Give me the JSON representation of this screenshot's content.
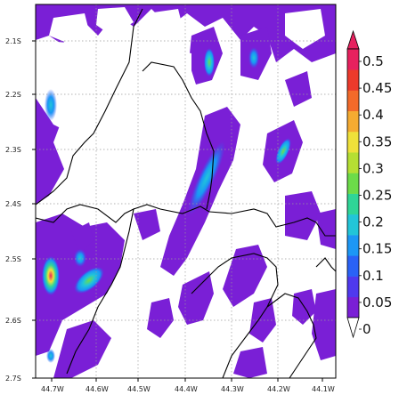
{
  "map": {
    "lat_ticks": [
      "2.1S",
      "2.2S",
      "2.3S",
      "2.4S",
      "2.5S",
      "2.6S",
      "2.7S"
    ],
    "lon_ticks": [
      "44.7W",
      "44.6W",
      "44.5W",
      "44.4W",
      "44.3W",
      "44.2W",
      "44.1W"
    ],
    "lat_range": [
      -2.75,
      -2.05
    ],
    "lon_range": [
      -44.73,
      -44.07
    ],
    "grid": true,
    "field_colormap": [
      "#7a1fd6",
      "#5a2dea",
      "#2a5cf5",
      "#1a96f5",
      "#21c6d8",
      "#30d69a",
      "#6fdc4a",
      "#b7e034",
      "#f0e23a",
      "#f7b233",
      "#f5752b",
      "#ee3b2a",
      "#e8205f"
    ]
  },
  "colorbar": {
    "labels": [
      "0",
      "0.05",
      "0.1",
      "0.15",
      "0.2",
      "0.25",
      "0.3",
      "0.35",
      "0.4",
      "0.45",
      "0.5"
    ],
    "colors": [
      "#7a1fd6",
      "#4f39ee",
      "#2a62f6",
      "#1c97f5",
      "#22c5d8",
      "#2fd597",
      "#6cdb49",
      "#b5df33",
      "#efe13a",
      "#f5ab31",
      "#f36a2a",
      "#ec3a2b",
      "#e7215e"
    ],
    "orientation": "vertical",
    "placement": "right",
    "min": 0,
    "max": 0.5,
    "extend_min": true,
    "extend_max": true
  }
}
